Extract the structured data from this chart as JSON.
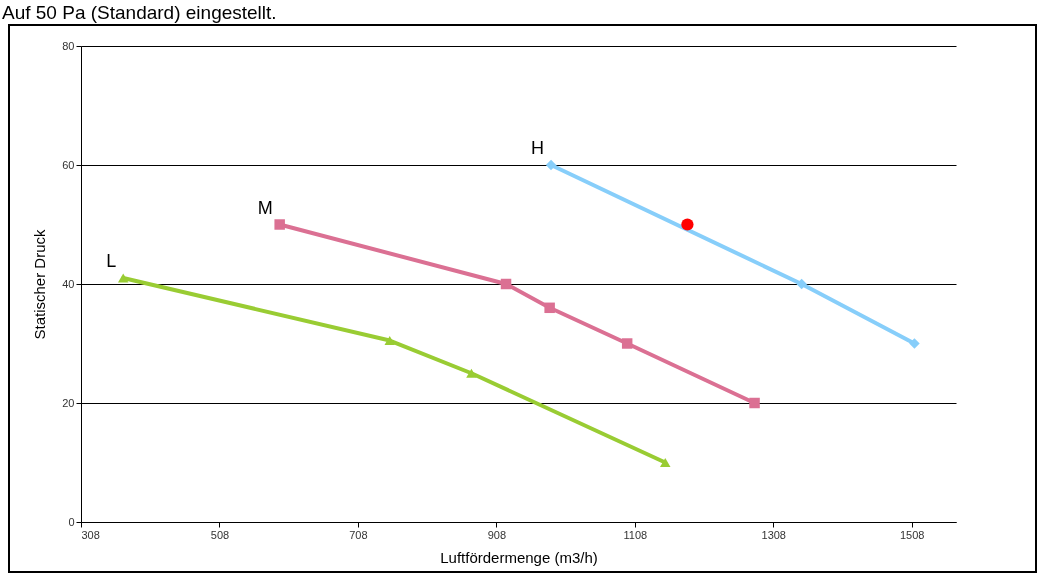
{
  "chart_data": {
    "type": "line",
    "title": "Auf 50 Pa (Standard) eingestellt.",
    "xlabel": "Luftfördermenge (m3/h)",
    "ylabel": "Statischer  Druck",
    "xlim": [
      308,
      1572
    ],
    "xticks": [
      308,
      508,
      708,
      908,
      1108,
      1308,
      1508
    ],
    "ylim": [
      0,
      80
    ],
    "yticks": [
      0,
      20,
      40,
      60,
      80
    ],
    "grid": "y",
    "series": [
      {
        "name": "L",
        "color": "#99cc33",
        "marker": "triangle",
        "x": [
          369,
          754,
          872,
          1152
        ],
        "values": [
          41,
          30.5,
          25,
          10
        ]
      },
      {
        "name": "M",
        "color": "#db7093",
        "marker": "square",
        "x": [
          595,
          922,
          985,
          1097,
          1281
        ],
        "values": [
          50,
          40,
          36,
          30,
          20
        ]
      },
      {
        "name": "H",
        "color": "#87cefa",
        "marker": "diamond",
        "x": [
          987,
          1349,
          1512
        ],
        "values": [
          60,
          40,
          30
        ]
      },
      {
        "type": "scatter",
        "color": "#ff0000",
        "marker": "circle",
        "x": [
          1184
        ],
        "values": [
          50
        ]
      }
    ]
  }
}
